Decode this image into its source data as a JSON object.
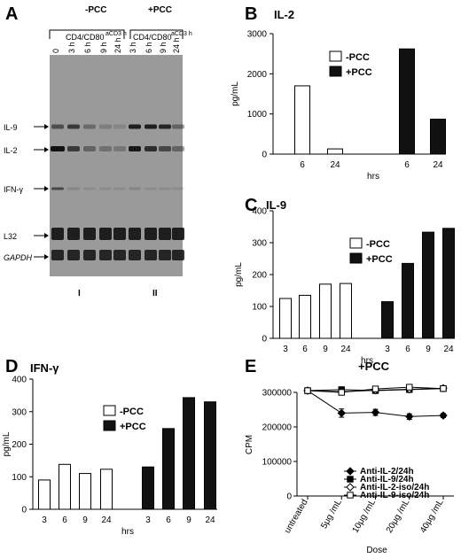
{
  "panel_labels": {
    "A": "A",
    "B": "B",
    "C": "C",
    "D": "D",
    "E": "E"
  },
  "gel": {
    "group_minus": "-PCC",
    "group_plus": "+PCC",
    "bracket_minus": "CD4/CD80",
    "bracket_plus": "CD4/CD80",
    "bracket_sup": "aCD3 h",
    "lanes_minus": [
      "0",
      "3 h",
      "6 h",
      "9 h",
      "24 h"
    ],
    "lanes_plus": [
      "3 h",
      "6 h",
      "9 h",
      "24 h"
    ],
    "bands": [
      "IL-9",
      "IL-2",
      "IFN-γ",
      "L32",
      "GAPDH"
    ],
    "roman_minus": "I",
    "roman_plus": "II",
    "colors": {
      "gel_bg": "#9a9a9a",
      "band": "#111111"
    }
  },
  "chart_data": [
    {
      "panel": "B",
      "type": "bar",
      "title": "IL-2",
      "xlabel": "hrs",
      "ylabel": "pg/mL",
      "ylim": [
        0,
        3000
      ],
      "yticks": [
        0,
        1000,
        2000,
        3000
      ],
      "legend": [
        "-PCC",
        "+PCC"
      ],
      "legend_position": "top-center",
      "series": [
        {
          "name": "-PCC",
          "fill": "#ffffff",
          "x": [
            "6",
            "24"
          ],
          "values": [
            1700,
            130
          ]
        },
        {
          "name": "+PCC",
          "fill": "#111111",
          "x": [
            "6",
            "24"
          ],
          "values": [
            2620,
            870
          ]
        }
      ]
    },
    {
      "panel": "C",
      "type": "bar",
      "title": "IL-9",
      "xlabel": "hrs",
      "ylabel": "pg/mL",
      "ylim": [
        0,
        400
      ],
      "yticks": [
        0,
        100,
        200,
        300,
        400
      ],
      "legend": [
        "-PCC",
        "+PCC"
      ],
      "legend_position": "top-center",
      "series": [
        {
          "name": "-PCC",
          "fill": "#ffffff",
          "x": [
            "3",
            "6",
            "9",
            "24"
          ],
          "values": [
            125,
            135,
            170,
            172
          ]
        },
        {
          "name": "+PCC",
          "fill": "#111111",
          "x": [
            "3",
            "6",
            "9",
            "24"
          ],
          "values": [
            115,
            235,
            333,
            345
          ]
        }
      ]
    },
    {
      "panel": "D",
      "type": "bar",
      "title": "IFN-γ",
      "xlabel": "hrs",
      "ylabel": "pg/mL",
      "ylim": [
        0,
        400
      ],
      "yticks": [
        0,
        100,
        200,
        300,
        400
      ],
      "legend": [
        "-PCC",
        "+PCC"
      ],
      "legend_position": "top-center",
      "series": [
        {
          "name": "-PCC",
          "fill": "#ffffff",
          "x": [
            "3",
            "6",
            "9",
            "24"
          ],
          "values": [
            90,
            138,
            110,
            123
          ]
        },
        {
          "name": "+PCC",
          "fill": "#111111",
          "x": [
            "3",
            "6",
            "9",
            "24"
          ],
          "values": [
            130,
            248,
            343,
            330
          ]
        }
      ]
    },
    {
      "panel": "E",
      "type": "line",
      "title": "+PCC",
      "xlabel": "Dose",
      "ylabel": "CPM",
      "ylim": [
        0,
        300000
      ],
      "yticks": [
        0,
        100000,
        200000,
        300000
      ],
      "categories": [
        "untreated",
        "5μg /mL",
        "10μg /mL",
        "20μg /mL",
        "40μg /mL"
      ],
      "legend_position": "bottom-right",
      "series": [
        {
          "name": "Anti-IL-2/24h",
          "marker": "diamond-filled",
          "values": [
            305000,
            240000,
            242000,
            230000,
            233000
          ],
          "errors": [
            4000,
            12000,
            9000,
            8000,
            6000
          ]
        },
        {
          "name": "Anti-IL-9/24h",
          "marker": "square-filled",
          "values": [
            305000,
            308000,
            305000,
            308000,
            311000
          ],
          "errors": [
            4000,
            4000,
            3000,
            4000,
            3000
          ]
        },
        {
          "name": "Anti-IL-2-iso/24h",
          "marker": "diamond-open",
          "values": [
            305000,
            302000,
            306000,
            309000,
            312000
          ],
          "errors": [
            4000,
            4000,
            3000,
            4000,
            3000
          ]
        },
        {
          "name": "Anti-IL-9-iso/24h",
          "marker": "square-open",
          "values": [
            305000,
            300000,
            310000,
            315000,
            311000
          ],
          "errors": [
            4000,
            4000,
            3000,
            4000,
            3000
          ]
        }
      ]
    }
  ]
}
